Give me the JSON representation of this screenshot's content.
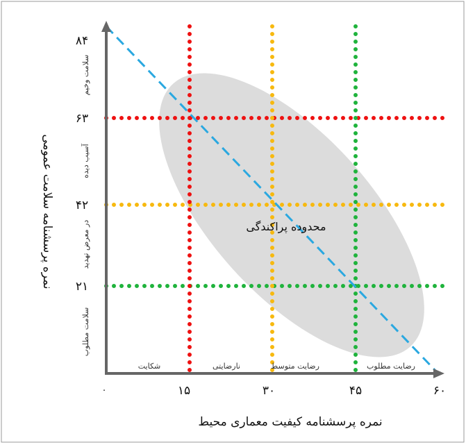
{
  "scatter_label": "محدوده پراکندگی",
  "x_axis": {
    "title": "نمره پرسشنامه کیفیت معماری محیط",
    "origin_label": "۰",
    "ticks": [
      "۱۵",
      "۳۰",
      "۴۵",
      "۶۰"
    ],
    "zones": [
      "شکایت",
      "نارضایتی",
      "رضایت متوسط",
      "رضایت مطلوب"
    ]
  },
  "y_axis": {
    "title": "نمره پرسشنامه سلامت عمومی",
    "ticks": [
      "۲۱",
      "۴۲",
      "۶۳",
      "۸۴"
    ],
    "zones": [
      "سلامت مطلوب",
      "در معرض تهدید",
      "آسیب دیده",
      "سلامت وخیم"
    ]
  },
  "colors": {
    "red": "#ee1111",
    "orange": "#f7b90f",
    "green": "#1fb33c",
    "trend": "#2aa8e0",
    "ellipse": "#dcdcdc",
    "axis": "#666666"
  }
}
